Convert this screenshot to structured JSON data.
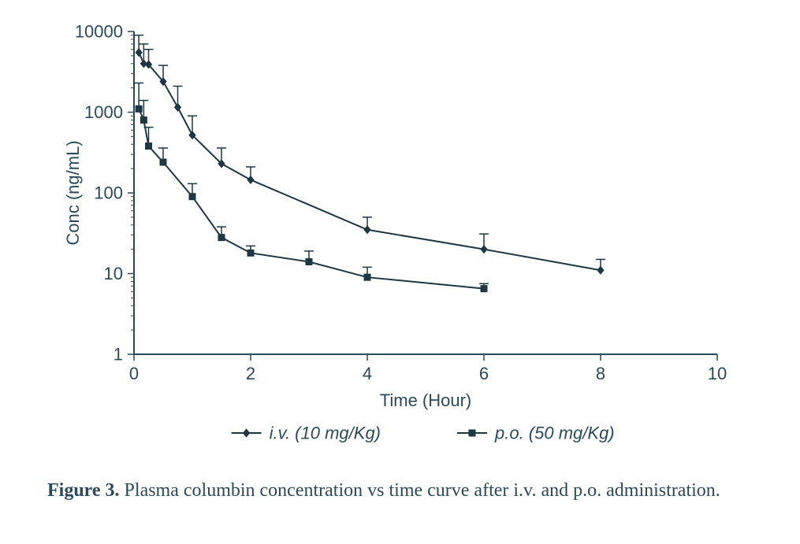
{
  "chart": {
    "type": "line",
    "background_color": "#ffffff",
    "axis_color": "#2a4a5a",
    "tick_color": "#2a4a5a",
    "text_color": "#2a4a5a",
    "line_width": 2,
    "marker_size": 8,
    "error_cap_halfwidth": 6,
    "tick_len_major": 8,
    "tick_len_minor": 4,
    "x": {
      "label": "Time (Hour)",
      "label_fontsize": 22,
      "scale": "linear",
      "xlim": [
        0,
        10
      ],
      "ticks": [
        0,
        2,
        4,
        6,
        8,
        10
      ],
      "tick_fontsize": 22
    },
    "y": {
      "label": "Conc (ng/mL)",
      "label_fontsize": 22,
      "scale": "log",
      "ylim": [
        1,
        10000
      ],
      "ticks": [
        1,
        10,
        100,
        1000,
        10000
      ],
      "tick_fontsize": 22,
      "minor_per_decade": [
        2,
        3,
        4,
        5,
        6,
        7,
        8,
        9
      ]
    },
    "series": [
      {
        "name": "iv",
        "legend": "i.v. (10 mg/Kg)",
        "legend_italic": true,
        "marker": "diamond",
        "marker_fill": "#1e3742",
        "line_color": "#1e3742",
        "points": [
          {
            "x": 0.083,
            "y": 5500,
            "err_hi": 9000
          },
          {
            "x": 0.167,
            "y": 4000,
            "err_hi": 7000
          },
          {
            "x": 0.25,
            "y": 3900,
            "err_hi": 6000
          },
          {
            "x": 0.5,
            "y": 2400,
            "err_hi": 3800
          },
          {
            "x": 0.75,
            "y": 1150,
            "err_hi": 2100
          },
          {
            "x": 1.0,
            "y": 520,
            "err_hi": 900
          },
          {
            "x": 1.5,
            "y": 230,
            "err_hi": 360
          },
          {
            "x": 2.0,
            "y": 145,
            "err_hi": 210
          },
          {
            "x": 4.0,
            "y": 35,
            "err_hi": 50
          },
          {
            "x": 6.0,
            "y": 20,
            "err_hi": 31
          },
          {
            "x": 8.0,
            "y": 11,
            "err_hi": 15
          }
        ]
      },
      {
        "name": "po",
        "legend": "p.o. (50 mg/Kg)",
        "legend_italic": true,
        "marker": "square",
        "marker_fill": "#1e3742",
        "line_color": "#1e3742",
        "points": [
          {
            "x": 0.083,
            "y": 1100,
            "err_hi": 2300
          },
          {
            "x": 0.167,
            "y": 800,
            "err_hi": 1400
          },
          {
            "x": 0.25,
            "y": 380,
            "err_hi": 650
          },
          {
            "x": 0.5,
            "y": 240,
            "err_hi": 360
          },
          {
            "x": 1.0,
            "y": 90,
            "err_hi": 130
          },
          {
            "x": 1.5,
            "y": 28,
            "err_hi": 38
          },
          {
            "x": 2.0,
            "y": 18,
            "err_hi": 22
          },
          {
            "x": 3.0,
            "y": 14,
            "err_hi": 19
          },
          {
            "x": 4.0,
            "y": 9,
            "err_hi": 12
          },
          {
            "x": 6.0,
            "y": 6.5,
            "err_hi": 7.5
          }
        ]
      }
    ],
    "legend": {
      "position": "bottom",
      "fontsize": 22,
      "line_len": 38,
      "item_gap": 80
    }
  },
  "caption": {
    "label": "Figure 3.",
    "text": " Plasma columbin concentration vs time curve after i.v. and p.o. administration.",
    "fontsize": 24
  }
}
